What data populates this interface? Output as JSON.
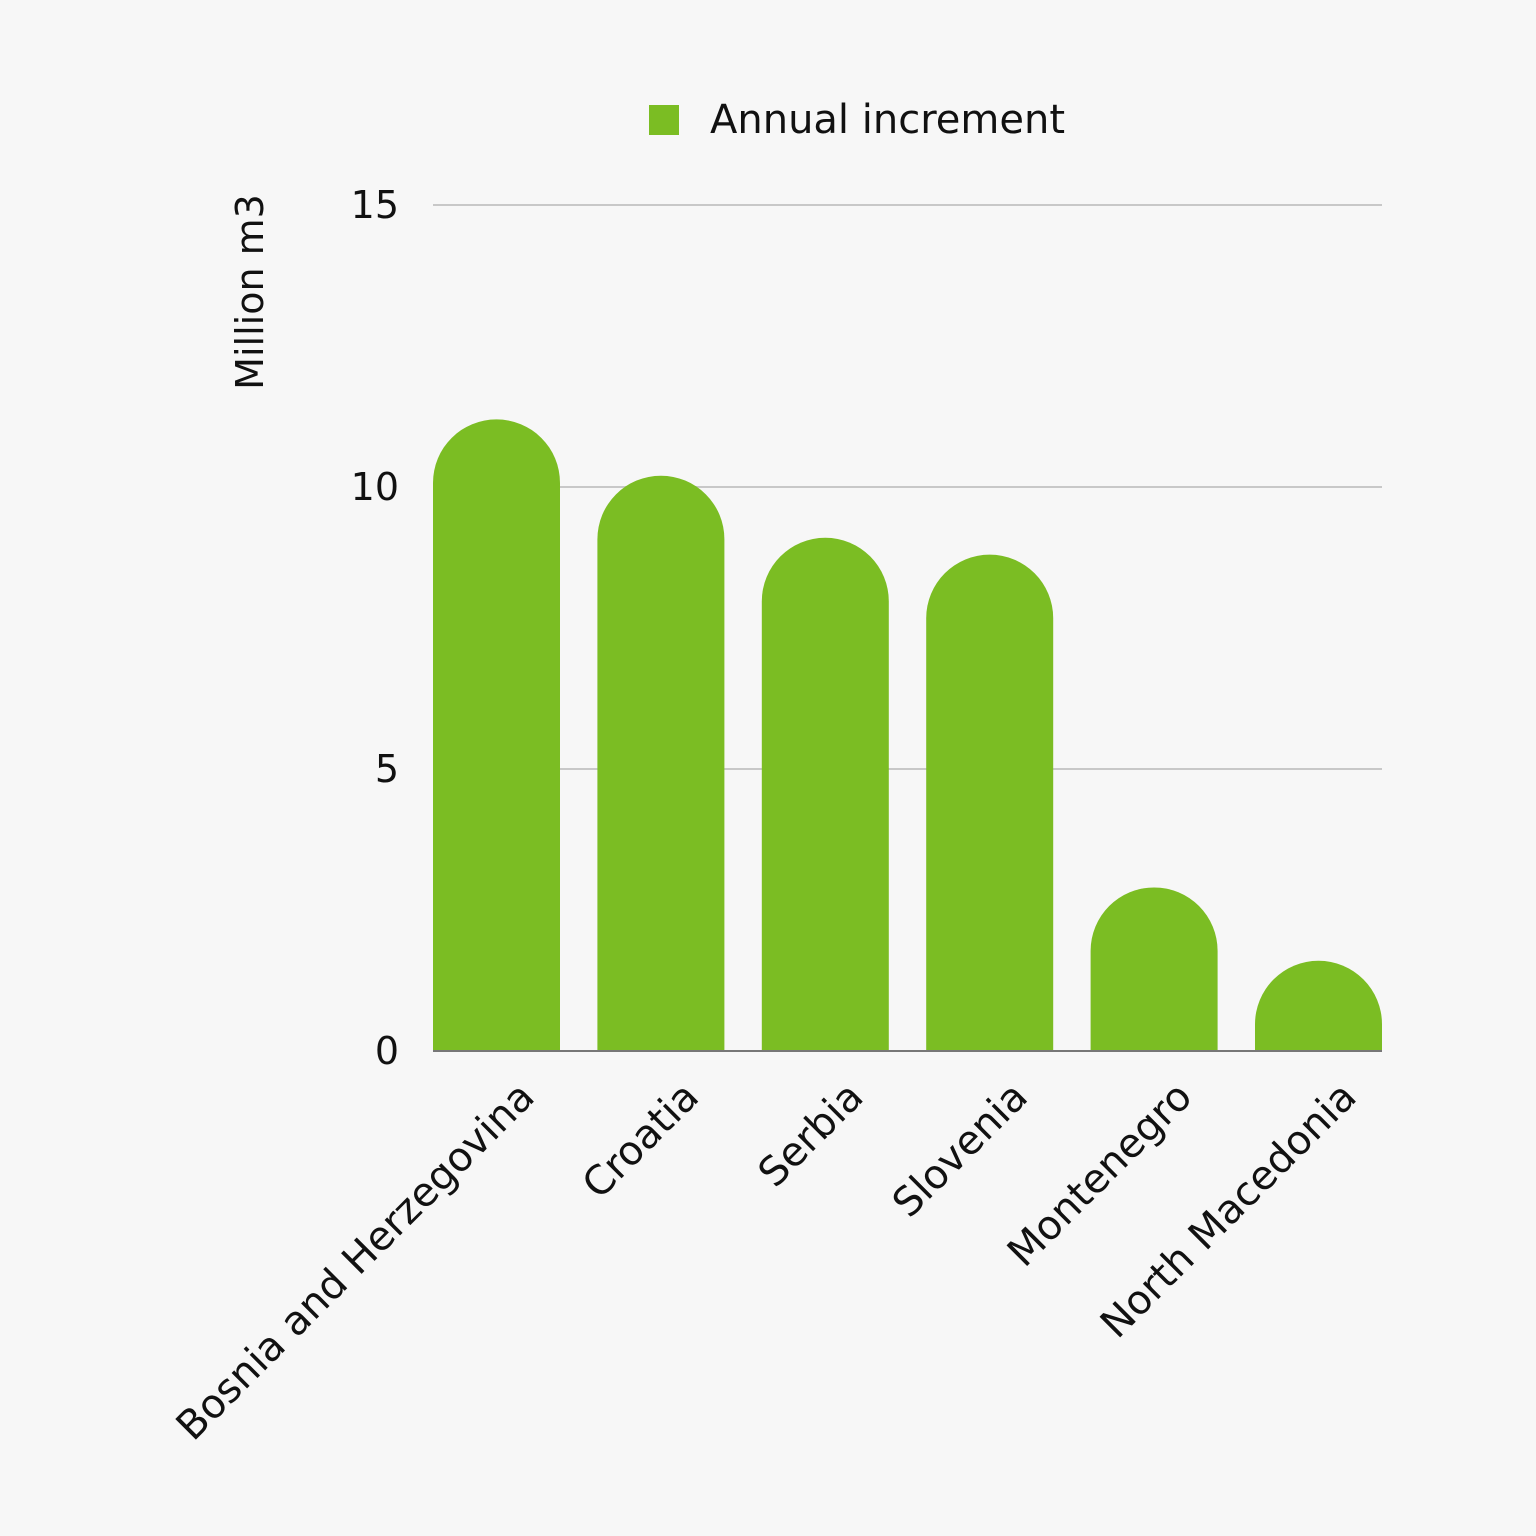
{
  "chart_data": {
    "type": "bar",
    "categories": [
      "Bosnia and Herzegovina",
      "Croatia",
      "Serbia",
      "Slovenia",
      "Montenegro",
      "North Macedonia"
    ],
    "series": [
      {
        "name": "Annual increment",
        "values": [
          11.2,
          10.2,
          9.1,
          8.8,
          2.9,
          1.6
        ],
        "color": "#7bbd23"
      }
    ],
    "title": "",
    "xlabel": "",
    "ylabel": "Million m3",
    "ylim": [
      0,
      15
    ],
    "yticks": [
      0,
      5,
      10,
      15
    ],
    "grid": true,
    "legend_position": "top-center",
    "bar_style": "rounded-top"
  }
}
